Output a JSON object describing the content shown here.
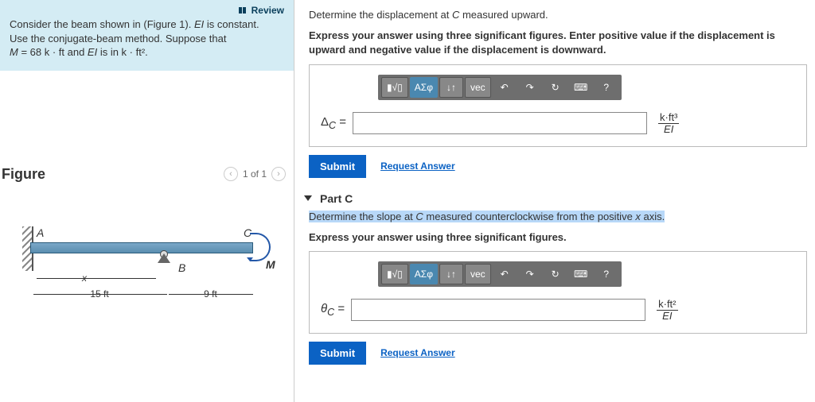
{
  "left": {
    "review": "Review",
    "problem_l1": "Consider the beam shown in (Figure 1). ",
    "problem_ei": "EI",
    "problem_l1b": " is constant.",
    "problem_l2": "Use the conjugate-beam method. Suppose that",
    "problem_l3a": "M",
    "problem_l3b": " = 68 k · ft and ",
    "problem_l3c": "EI",
    "problem_l3d": " is in k · ft².",
    "figure_title": "Figure",
    "pager": "1 of 1",
    "labels": {
      "A": "A",
      "B": "B",
      "C": "C",
      "M": "M",
      "x": "x",
      "d15": "15 ft",
      "d9": "9 ft"
    }
  },
  "partB": {
    "q1a": "Determine the displacement at ",
    "q1var": "C",
    "q1b": " measured upward.",
    "q2": "Express your answer using three significant figures. Enter positive value if the displacement is upward and negative value if the displacement is downward.",
    "var": "Δ",
    "sub": "C",
    "eq": " =",
    "unit_num": "k·ft³",
    "unit_den": "EI",
    "submit": "Submit",
    "request": "Request Answer"
  },
  "partC": {
    "title": "Part C",
    "q1a": "Determine the slope at ",
    "q1var": "C",
    "q1b": " measured counterclockwise from the positive ",
    "q1x": "x",
    "q1c": " axis.",
    "q2": "Express your answer using three significant figures.",
    "var": "θ",
    "sub": "C",
    "eq": " =",
    "unit_num": "k·ft²",
    "unit_den": "EI",
    "submit": "Submit",
    "request": "Request Answer"
  },
  "toolbar": {
    "t1": "▮√▯",
    "t2": "ΑΣφ",
    "t3": "↓↑",
    "t4": "vec",
    "t5": "↶",
    "t6": "↷",
    "t7": "↻",
    "t8": "⌨",
    "t9": "?"
  },
  "colors": {
    "problem_bg": "#d4ecf4",
    "submit_bg": "#0b62c4",
    "toolbar_bg": "#6e6e6e",
    "highlight": "#b8d8f8"
  }
}
